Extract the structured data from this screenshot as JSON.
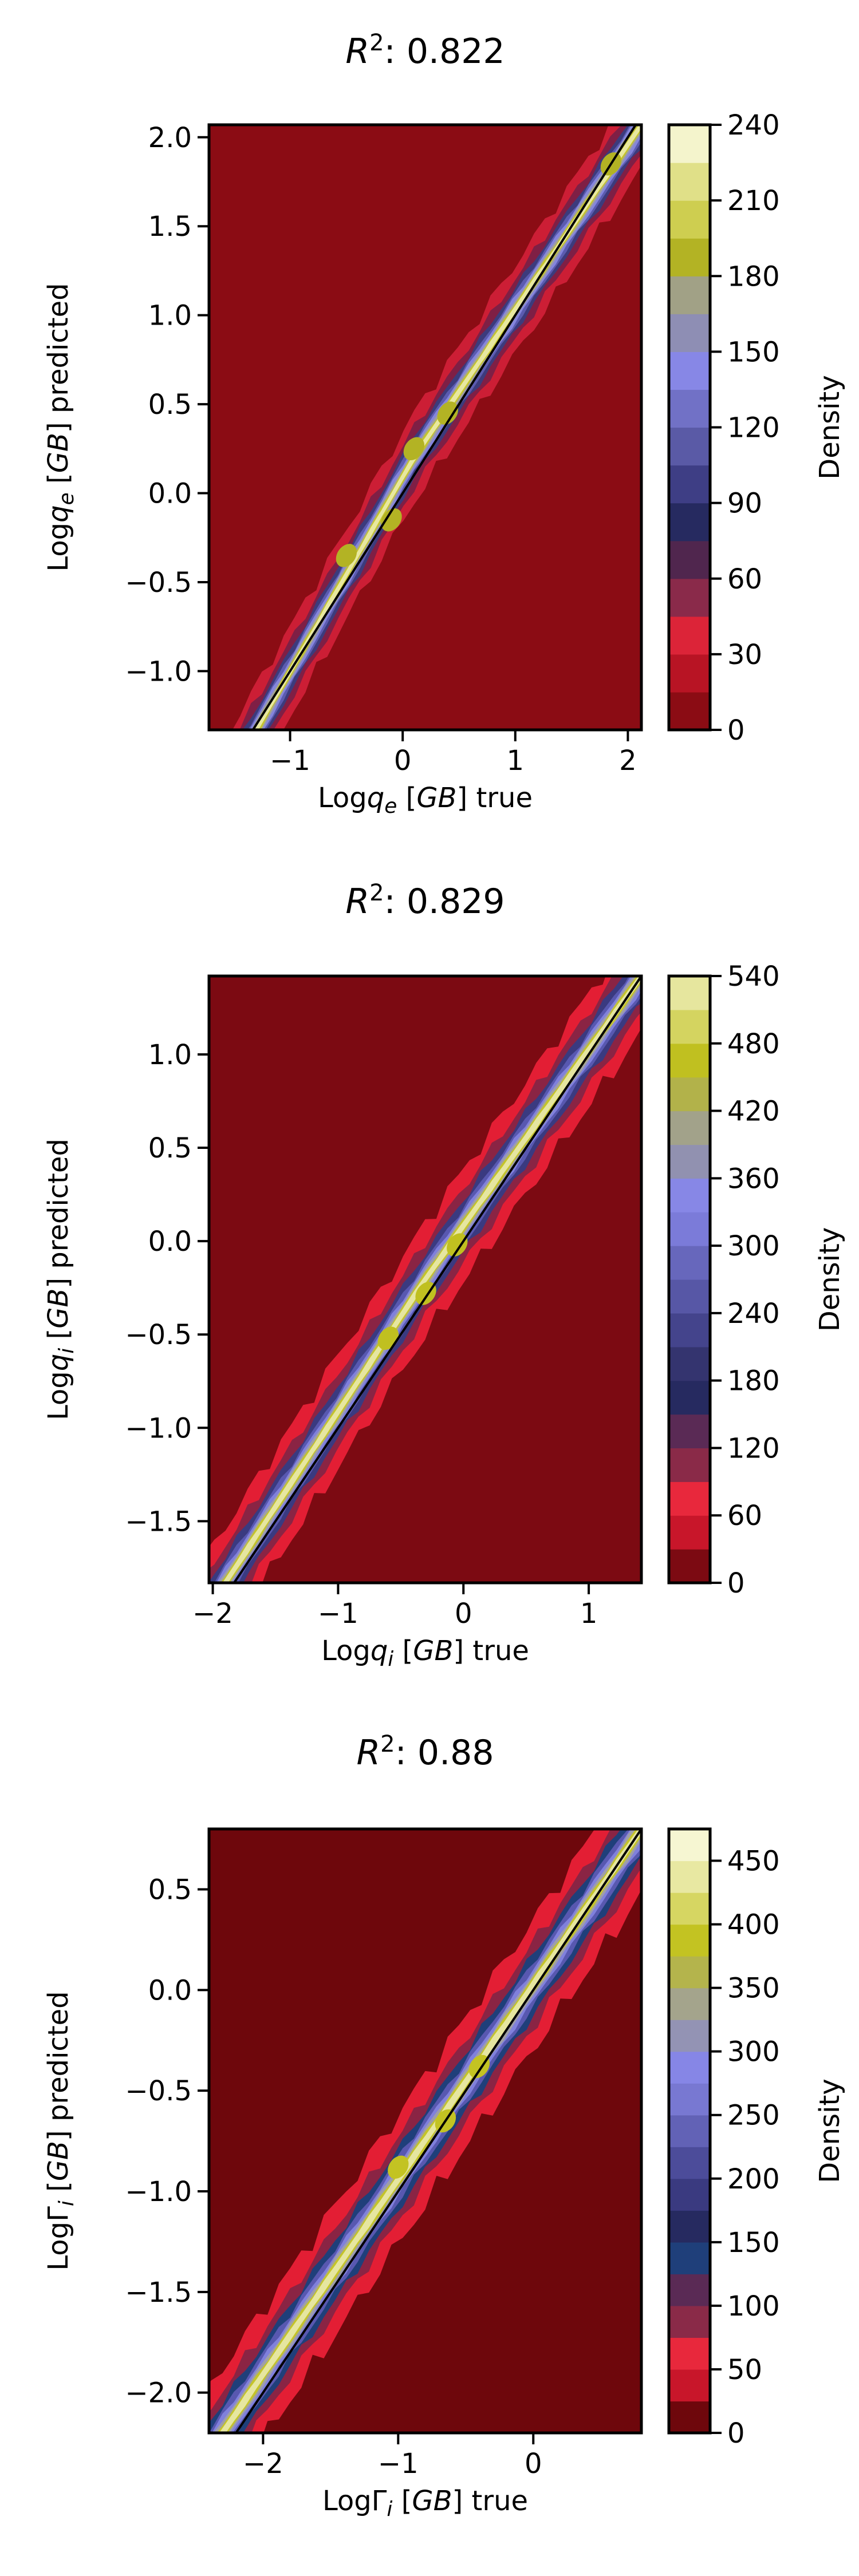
{
  "chart_data": [
    {
      "type": "heatmap",
      "subtype": "filled-contour density with identity line",
      "title": "R²: 0.822",
      "title_parts": {
        "base": "R",
        "sup": "2",
        "rest": ": 0.822"
      },
      "xlabel": {
        "pre": "Log",
        "var": "q",
        "sub": "e",
        "post": " [GB] true"
      },
      "ylabel": {
        "pre": "Log",
        "var": "q",
        "sub": "e",
        "post": " [GB] predicted"
      },
      "xlim": [
        -1.72,
        2.12
      ],
      "ylim": [
        -1.33,
        2.07
      ],
      "xticks": [
        -1,
        0,
        1,
        2
      ],
      "xtick_labels": [
        "−1",
        "0",
        "1",
        "2"
      ],
      "yticks": [
        -1.0,
        -0.5,
        0.0,
        0.5,
        1.0,
        1.5,
        2.0
      ],
      "ytick_labels": [
        "−1.0",
        "−0.5",
        "0.0",
        "0.5",
        "1.0",
        "1.5",
        "2.0"
      ],
      "ridge": [
        [
          -1.3,
          -1.33
        ],
        [
          0.1,
          0.2
        ],
        [
          2.12,
          2.07
        ]
      ],
      "identity_line": [
        [
          -1.72,
          -1.72
        ],
        [
          2.12,
          2.12
        ]
      ],
      "band_halfwidths": [
        0.25,
        0.17,
        0.12,
        0.09,
        0.07,
        0.05,
        0.035,
        0.022
      ],
      "band_colors": [
        "#cc1e35",
        "#7f1f45",
        "#3c3b7c",
        "#5b5bb0",
        "#8585dc",
        "#9e9ea0",
        "#c5c52a",
        "#e8e8a0"
      ],
      "hotspots": [
        [
          0.1,
          0.25
        ],
        [
          -0.5,
          -0.35
        ],
        [
          -0.1,
          -0.15
        ],
        [
          0.4,
          0.45
        ],
        [
          1.85,
          1.85
        ]
      ],
      "colorbar": {
        "label": "Density",
        "max": 240,
        "ticks": [
          0,
          30,
          60,
          90,
          120,
          150,
          180,
          210,
          240
        ],
        "levels": [
          0,
          15,
          30,
          45,
          60,
          75,
          90,
          105,
          120,
          135,
          150,
          165,
          180,
          195,
          210,
          225,
          240
        ],
        "colors": [
          "#8b0c14",
          "#b81424",
          "#dc2438",
          "#8a2a4a",
          "#50264e",
          "#262a60",
          "#3e3e85",
          "#5a5aa6",
          "#7171c6",
          "#8787e6",
          "#8e8eb4",
          "#a1a186",
          "#b3b324",
          "#cece50",
          "#e0e088",
          "#f4f4cc"
        ]
      },
      "background": "#8b0c14"
    },
    {
      "type": "heatmap",
      "subtype": "filled-contour density with identity line",
      "title": "R²: 0.829",
      "title_parts": {
        "base": "R",
        "sup": "2",
        "rest": ": 0.829"
      },
      "xlabel": {
        "pre": "Log",
        "var": "q",
        "sub": "i",
        "post": " [GB] true"
      },
      "ylabel": {
        "pre": "Log",
        "var": "q",
        "sub": "i",
        "post": " [GB] predicted"
      },
      "xlim": [
        -2.03,
        1.42
      ],
      "ylim": [
        -1.83,
        1.42
      ],
      "xticks": [
        -2,
        -1,
        0,
        1
      ],
      "xtick_labels": [
        "−2",
        "−1",
        "0",
        "1"
      ],
      "yticks": [
        -1.5,
        -1.0,
        -0.5,
        0.0,
        0.5,
        1.0
      ],
      "ytick_labels": [
        "−1.5",
        "−1.0",
        "−0.5",
        "0.0",
        "0.5",
        "1.0"
      ],
      "ridge": [
        [
          -1.9,
          -1.83
        ],
        [
          -0.3,
          -0.2
        ],
        [
          1.42,
          1.42
        ]
      ],
      "identity_line": [
        [
          -2.03,
          -2.03
        ],
        [
          1.42,
          1.42
        ]
      ],
      "band_halfwidths": [
        0.3,
        0.2,
        0.14,
        0.1,
        0.075,
        0.055,
        0.038,
        0.024
      ],
      "band_colors": [
        "#e31e34",
        "#8a2444",
        "#3a3a80",
        "#5858b0",
        "#8080dc",
        "#9e9ea8",
        "#c4c42a",
        "#e6e6a0"
      ],
      "hotspots": [
        [
          -0.3,
          -0.28
        ],
        [
          -0.05,
          -0.02
        ],
        [
          -0.6,
          -0.52
        ]
      ],
      "colorbar": {
        "label": "Density",
        "max": 540,
        "ticks": [
          0,
          60,
          120,
          180,
          240,
          300,
          360,
          420,
          480,
          540
        ],
        "levels": [
          0,
          30,
          60,
          90,
          120,
          150,
          180,
          210,
          240,
          270,
          300,
          330,
          360,
          390,
          420,
          450,
          480,
          510,
          540
        ],
        "colors": [
          "#7c0a12",
          "#c8162a",
          "#e8283c",
          "#8a2a48",
          "#5a2a55",
          "#262a60",
          "#34346f",
          "#44448c",
          "#5757a6",
          "#6767bc",
          "#7b7bd9",
          "#8787e6",
          "#9191b0",
          "#a2a28a",
          "#b2b24a",
          "#c0c020",
          "#d4d460",
          "#e6e69e",
          "#f4f4cc"
        ]
      },
      "background": "#7c0a12"
    },
    {
      "type": "heatmap",
      "subtype": "filled-contour density with identity line",
      "title": "R²: 0.88",
      "title_parts": {
        "base": "R",
        "sup": "2",
        "rest": ": 0.88"
      },
      "xlabel": {
        "pre": "LogΓ",
        "var": "",
        "sub": "i",
        "post": " [GB] true"
      },
      "ylabel": {
        "pre": "LogΓ",
        "var": "",
        "sub": "i",
        "post": " [GB] predicted"
      },
      "xlim": [
        -2.4,
        0.8
      ],
      "ylim": [
        -2.2,
        0.8
      ],
      "xticks": [
        -2,
        -1,
        0
      ],
      "xtick_labels": [
        "−2",
        "−1",
        "0"
      ],
      "yticks": [
        -2.0,
        -1.5,
        -1.0,
        -0.5,
        0.0,
        0.5
      ],
      "ytick_labels": [
        "−2.0",
        "−1.5",
        "−1.0",
        "−0.5",
        "0.0",
        "0.5"
      ],
      "ridge": [
        [
          -2.3,
          -2.2
        ],
        [
          -0.7,
          -0.65
        ],
        [
          0.8,
          0.8
        ]
      ],
      "identity_line": [
        [
          -2.4,
          -2.4
        ],
        [
          0.8,
          0.8
        ]
      ],
      "band_halfwidths": [
        0.32,
        0.21,
        0.15,
        0.11,
        0.08,
        0.058,
        0.04,
        0.025
      ],
      "band_colors": [
        "#e31e34",
        "#8a2444",
        "#1f3f7a",
        "#5858b0",
        "#8080dc",
        "#9e9ea8",
        "#c4c42a",
        "#e6e6a0"
      ],
      "hotspots": [
        [
          -0.65,
          -0.65
        ],
        [
          -0.4,
          -0.38
        ],
        [
          -1.0,
          -0.88
        ]
      ],
      "colorbar": {
        "label": "Density",
        "max": 475,
        "ticks": [
          0,
          50,
          100,
          150,
          200,
          250,
          300,
          350,
          400,
          450
        ],
        "levels": [
          0,
          25,
          50,
          75,
          100,
          125,
          150,
          175,
          200,
          225,
          250,
          275,
          300,
          325,
          350,
          375,
          400,
          425,
          450,
          475
        ],
        "colors": [
          "#6e070c",
          "#c8162a",
          "#e8283c",
          "#8a2a48",
          "#5a2a55",
          "#1f3f7a",
          "#262a60",
          "#3a3a80",
          "#4c4c9a",
          "#6262b6",
          "#7878d2",
          "#8686e6",
          "#9393b4",
          "#a4a48c",
          "#b4b44c",
          "#c3c322",
          "#d6d662",
          "#e8e8a2",
          "#f6f6d2"
        ]
      },
      "background": "#6e070c"
    }
  ]
}
